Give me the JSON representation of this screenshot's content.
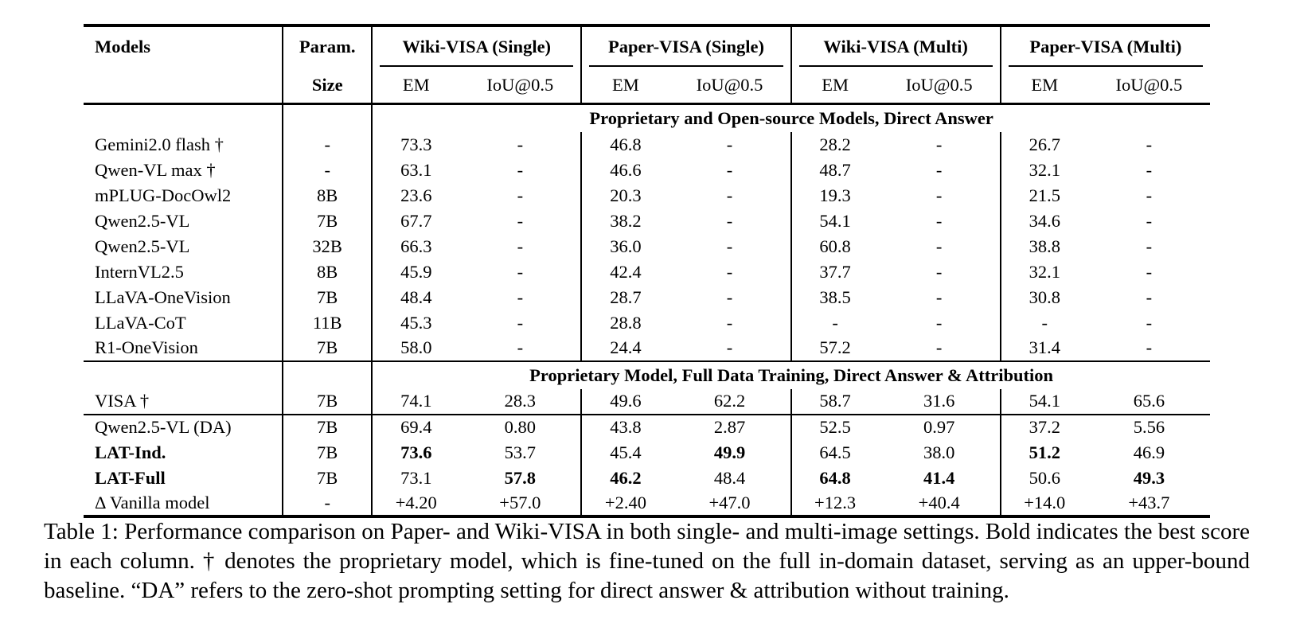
{
  "table": {
    "header": {
      "models_label": "Models",
      "param_line1": "Param.",
      "param_line2": "Size",
      "groups": [
        "Wiki-VISA (Single)",
        "Paper-VISA (Single)",
        "Wiki-VISA (Multi)",
        "Paper-VISA (Multi)"
      ],
      "subcols": [
        "EM",
        "IoU@0.5"
      ]
    },
    "sections": [
      {
        "title": "Proprietary and Open-source Models, Direct Answer",
        "rows": [
          {
            "model": "Gemini2.0 flash †",
            "param": "-",
            "values": [
              "73.3",
              "-",
              "46.8",
              "-",
              "28.2",
              "-",
              "26.7",
              "-"
            ]
          },
          {
            "model": "Qwen-VL max †",
            "param": "-",
            "values": [
              "63.1",
              "-",
              "46.6",
              "-",
              "48.7",
              "-",
              "32.1",
              "-"
            ]
          },
          {
            "model": "mPLUG-DocOwl2",
            "param": "8B",
            "values": [
              "23.6",
              "-",
              "20.3",
              "-",
              "19.3",
              "-",
              "21.5",
              "-"
            ]
          },
          {
            "model": "Qwen2.5-VL",
            "param": "7B",
            "values": [
              "67.7",
              "-",
              "38.2",
              "-",
              "54.1",
              "-",
              "34.6",
              "-"
            ]
          },
          {
            "model": "Qwen2.5-VL",
            "param": "32B",
            "values": [
              "66.3",
              "-",
              "36.0",
              "-",
              "60.8",
              "-",
              "38.8",
              "-"
            ]
          },
          {
            "model": "InternVL2.5",
            "param": "8B",
            "values": [
              "45.9",
              "-",
              "42.4",
              "-",
              "37.7",
              "-",
              "32.1",
              "-"
            ]
          },
          {
            "model": "LLaVA-OneVision",
            "param": "7B",
            "values": [
              "48.4",
              "-",
              "28.7",
              "-",
              "38.5",
              "-",
              "30.8",
              "-"
            ]
          },
          {
            "model": "LLaVA-CoT",
            "param": "11B",
            "values": [
              "45.3",
              "-",
              "28.8",
              "-",
              "-",
              "-",
              "-",
              "-"
            ]
          },
          {
            "model": "R1-OneVision",
            "param": "7B",
            "values": [
              "58.0",
              "-",
              "24.4",
              "-",
              "57.2",
              "-",
              "31.4",
              "-"
            ]
          }
        ]
      },
      {
        "title": "Proprietary Model, Full Data Training, Direct Answer & Attribution",
        "rows": [
          {
            "model": "VISA †",
            "param": "7B",
            "values": [
              "74.1",
              "28.3",
              "49.6",
              "62.2",
              "58.7",
              "31.6",
              "54.1",
              "65.6"
            ]
          }
        ]
      },
      {
        "title": null,
        "rows": [
          {
            "model": "Qwen2.5-VL (DA)",
            "param": "7B",
            "values": [
              "69.4",
              "0.80",
              "43.8",
              "2.87",
              "52.5",
              "0.97",
              "37.2",
              "5.56"
            ]
          },
          {
            "model": "LAT-Ind.",
            "model_bold": true,
            "param": "7B",
            "values": [
              "73.6",
              "53.7",
              "45.4",
              "49.9",
              "64.5",
              "38.0",
              "51.2",
              "46.9"
            ],
            "bold": [
              0,
              3,
              6
            ]
          },
          {
            "model": "LAT-Full",
            "model_bold": true,
            "param": "7B",
            "values": [
              "73.1",
              "57.8",
              "46.2",
              "48.4",
              "64.8",
              "41.4",
              "50.6",
              "49.3"
            ],
            "bold": [
              1,
              2,
              4,
              5,
              7
            ]
          },
          {
            "model": "Δ Vanilla model",
            "param": "-",
            "values": [
              "+4.20",
              "+57.0",
              "+2.40",
              "+47.0",
              "+12.3",
              "+40.4",
              "+14.0",
              "+43.7"
            ]
          }
        ]
      }
    ]
  },
  "caption": "Table 1: Performance comparison on Paper- and Wiki-VISA in both single- and multi-image settings. Bold indicates the best score in each column. † denotes the proprietary model, which is fine-tuned on the full in-domain dataset, serving as an upper-bound baseline. “DA” refers to the zero-shot prompting setting for direct answer & attribution without training.",
  "colors": {
    "text": "#000000",
    "background": "#ffffff",
    "rule": "#000000"
  }
}
